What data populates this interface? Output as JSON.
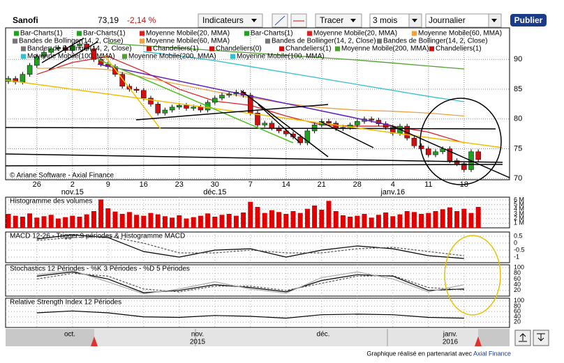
{
  "toolbar": {
    "name": "Sanofi",
    "price": "73,19",
    "change": "-2,14 %",
    "indicators": "Indicateurs",
    "draw": "Tracer",
    "period": "3 mois",
    "interval": "Journalier",
    "publish": "Publier"
  },
  "copyright": "© Ariane Software - Axial Finance",
  "navigator": {
    "labels": [
      "oct.",
      "nov.",
      "2015",
      "déc.",
      "janv.",
      "2016"
    ]
  },
  "footer": {
    "text": "Graphique réalisé en partenariat avec",
    "link": "Axial Finance"
  },
  "chart_data": [
    {
      "type": "candlestick",
      "up_color": "#22a022",
      "down_color": "#d01010",
      "categories": [
        null,
        null,
        null,
        null,
        "26",
        null,
        null,
        null,
        null,
        "2",
        null,
        null,
        null,
        null,
        "9",
        null,
        null,
        null,
        null,
        "16",
        null,
        null,
        null,
        null,
        "23",
        null,
        null,
        null,
        null,
        "30",
        null,
        null,
        null,
        null,
        "7",
        null,
        null,
        null,
        null,
        "14",
        null,
        null,
        null,
        null,
        "21",
        null,
        null,
        null,
        null,
        "28",
        null,
        null,
        null,
        null,
        "4",
        null,
        null,
        null,
        null,
        "11",
        null,
        null,
        null,
        null,
        "18",
        null,
        null
      ],
      "month_labels": [
        {
          "label": "nov.15",
          "category": "2"
        },
        {
          "label": "déc.15",
          "category": "30"
        },
        {
          "label": "janv.16",
          "category": "4"
        }
      ],
      "open": [
        86.3,
        86.8,
        86.2,
        87.5,
        89.0,
        90.5,
        91.2,
        91.8,
        92.0,
        91.5,
        92.3,
        92.6,
        91.8,
        90.0,
        89.2,
        88.8,
        87.5,
        85.5,
        85.0,
        84.8,
        83.5,
        82.5,
        81.0,
        81.5,
        82.0,
        82.3,
        81.8,
        82.0,
        81.5,
        82.8,
        83.5,
        84.0,
        84.2,
        84.5,
        84.0,
        81.0,
        79.0,
        79.3,
        78.5,
        78.0,
        77.5,
        77.0,
        76.0,
        78.0,
        79.0,
        79.6,
        79.3,
        78.4,
        78.6,
        79.0,
        79.6,
        80.0,
        79.8,
        79.2,
        78.6,
        77.6,
        78.8,
        76.8,
        75.5,
        75.0,
        74.0,
        74.5,
        75.0,
        73.0,
        72.5,
        71.5,
        74.5
      ],
      "high": [
        87.2,
        87.2,
        87.9,
        89.4,
        90.9,
        91.6,
        92.2,
        92.4,
        92.4,
        92.7,
        93.0,
        93.0,
        92.2,
        90.4,
        89.6,
        89.2,
        87.9,
        85.9,
        85.4,
        85.2,
        83.9,
        82.9,
        81.9,
        82.4,
        82.7,
        82.7,
        82.4,
        82.4,
        83.2,
        83.9,
        84.4,
        84.6,
        84.9,
        84.9,
        84.4,
        81.4,
        79.7,
        79.7,
        78.9,
        78.4,
        77.9,
        77.4,
        78.4,
        79.4,
        80.0,
        80.0,
        79.7,
        79.0,
        79.4,
        80.0,
        80.4,
        80.4,
        80.2,
        79.6,
        79.0,
        79.2,
        79.2,
        77.2,
        75.9,
        75.4,
        74.9,
        75.4,
        75.4,
        73.4,
        72.9,
        74.9,
        74.9
      ],
      "low": [
        85.9,
        85.8,
        85.8,
        87.1,
        88.6,
        90.1,
        90.8,
        91.4,
        91.1,
        91.1,
        91.9,
        91.4,
        89.6,
        88.8,
        88.4,
        87.1,
        85.1,
        84.6,
        84.4,
        83.1,
        82.1,
        80.6,
        80.6,
        81.1,
        81.6,
        81.4,
        81.4,
        81.1,
        81.1,
        82.4,
        83.1,
        83.6,
        83.8,
        83.6,
        80.6,
        78.6,
        78.6,
        78.1,
        77.6,
        77.1,
        76.6,
        75.6,
        75.6,
        77.6,
        78.6,
        78.9,
        78.0,
        78.0,
        78.2,
        78.6,
        79.2,
        79.4,
        78.8,
        78.2,
        77.2,
        77.2,
        76.4,
        75.1,
        74.6,
        73.6,
        73.6,
        74.1,
        72.6,
        72.1,
        71.1,
        71.1,
        72.8
      ],
      "close": [
        86.8,
        86.2,
        87.5,
        89.0,
        90.5,
        91.2,
        91.8,
        92.0,
        91.5,
        92.3,
        92.6,
        91.8,
        90.0,
        89.2,
        88.8,
        87.5,
        85.5,
        85.0,
        84.8,
        83.5,
        82.5,
        81.0,
        81.5,
        82.0,
        82.3,
        81.8,
        82.0,
        81.5,
        82.8,
        83.5,
        84.0,
        84.2,
        84.5,
        84.0,
        81.0,
        79.0,
        79.3,
        78.5,
        78.0,
        77.5,
        77.0,
        76.0,
        78.0,
        79.0,
        79.6,
        79.3,
        78.4,
        78.6,
        79.0,
        79.6,
        80.0,
        79.8,
        79.2,
        78.6,
        77.6,
        78.8,
        76.8,
        75.5,
        75.0,
        74.0,
        74.5,
        75.0,
        73.0,
        72.5,
        71.5,
        74.5,
        73.19
      ],
      "ylim": [
        69.8,
        95.3
      ],
      "yticks": [
        90,
        85,
        80,
        75,
        70
      ],
      "grid": true,
      "lines": {
        "categories": [
          "26",
          "2",
          "9",
          "16",
          "23",
          "30",
          "7",
          "14",
          "21",
          "28",
          "4",
          "11",
          "18"
        ],
        "series": [
          {
            "name": "Moyenne Mobile(20, MMA)",
            "color": "#e02020",
            "values": [
              87.5,
              89.5,
              90.5,
              88.0,
              85.0,
              83.0,
              82.3,
              80.5,
              79.0,
              78.8,
              78.8,
              77.8,
              76.0
            ]
          },
          {
            "name": "Moyenne Mobile(60, MMA)",
            "color": "#f0a040",
            "values": [
              88.5,
              88.6,
              88.3,
              87.0,
              85.8,
              84.6,
              83.6,
              82.6,
              81.9,
              81.5,
              81.3,
              81.0,
              80.5
            ]
          },
          {
            "name": "Moyenne Mobile(200, MMA)",
            "color": "#50a030",
            "values": [
              null,
              null,
              92.7,
              92.3,
              91.9,
              91.5,
              91.1,
              90.7,
              90.3,
              89.9,
              89.4,
              88.9,
              88.4
            ]
          },
          {
            "name": "Moyenne Mobile(100, MMA)",
            "color": "#30c0d0",
            "values": [
              null,
              null,
              null,
              91.3,
              90.6,
              89.8,
              88.8,
              87.8,
              86.8,
              85.8,
              84.8,
              83.8,
              82.9
            ]
          }
        ]
      },
      "legend": [
        [
          {
            "label": "Bar-Charts(1)",
            "color": "#22a022"
          },
          {
            "label": "Bar-Charts(1)",
            "color": "#22a022"
          },
          {
            "label": "Moyenne Mobile(20, MMA)",
            "color": "#e02020"
          },
          {
            "label": "Bar-Charts(1)",
            "color": "#22a022"
          },
          {
            "label": "Moyenne Mobile(20, MMA)",
            "color": "#e02020"
          },
          {
            "label": "Moyenne Mobile(60, MMA)",
            "color": "#f0a040"
          }
        ],
        [
          {
            "label": "Bandes de Bollinger(14, 2, Close)",
            "color": "#777777"
          },
          {
            "label": "Moyenne Mobile(60, MMA)",
            "color": "#f0a040"
          },
          {
            "label": "Bandes de Bollinger(14, 2, Close)",
            "color": "#777777"
          },
          {
            "label": "Bandes de Bollinger(14, 2, Close)",
            "color": "#777777"
          }
        ],
        [
          {
            "label": "Bandes de Bollinger(14, 2, Close)",
            "color": "#777777"
          },
          {
            "label": "Chandeliers(1)",
            "color": "#d01010"
          },
          {
            "label": "Chandeliers(0)",
            "color": "#d01010"
          },
          {
            "label": "Chandeliers(1)",
            "color": "#d01010"
          },
          {
            "label": "Moyenne Mobile(200, MMA)",
            "color": "#50a030"
          },
          {
            "label": "Chandeliers(1)",
            "color": "#d01010"
          }
        ],
        [
          {
            "label": "Moyenne Mobile(100, MMA)",
            "color": "#30c0d0"
          },
          {
            "label": "Moyenne Mobile(200, MMA)",
            "color": "#50a030"
          },
          {
            "label": "Moyenne Mobile(100, MMA)",
            "color": "#30c0d0"
          }
        ]
      ]
    },
    {
      "type": "bar",
      "title": "Histogramme des volumes",
      "color": "#e00000",
      "ylim": [
        0,
        6.6
      ],
      "yticks": [
        {
          "value": 6,
          "label": "6 M"
        },
        {
          "value": 5,
          "label": "5 M"
        },
        {
          "value": 4,
          "label": "4 M"
        },
        {
          "value": 3,
          "label": "3 M"
        },
        {
          "value": 2,
          "label": "2 M"
        },
        {
          "value": 1,
          "label": "1 M"
        }
      ],
      "values": [
        3.0,
        2.6,
        2.4,
        3.1,
        2.2,
        2.5,
        2.8,
        2.0,
        2.3,
        2.6,
        2.4,
        2.9,
        3.6,
        6.1,
        4.2,
        3.5,
        3.0,
        3.4,
        2.8,
        2.6,
        3.2,
        2.9,
        2.5,
        2.2,
        2.7,
        2.0,
        2.3,
        2.6,
        3.1,
        2.4,
        2.8,
        3.0,
        2.6,
        3.3,
        5.6,
        4.5,
        3.2,
        3.8,
        3.4,
        3.0,
        3.6,
        3.2,
        4.1,
        4.8,
        3.9,
        5.8,
        3.6,
        2.7,
        2.4,
        2.6,
        3.0,
        2.2,
        2.8,
        3.3,
        2.5,
        2.9,
        3.6,
        3.4,
        3.0,
        3.2,
        3.6,
        4.0,
        4.4,
        3.6,
        4.1,
        3.2,
        4.5
      ]
    },
    {
      "type": "line",
      "title": "MACD 12-26 - Trigger 9 périodes & Histogramme MACD",
      "ylim": [
        -1.4,
        0.8
      ],
      "yticks": [
        0.5,
        0,
        -0.5,
        -1
      ],
      "categories": [
        "26",
        "2",
        "9",
        "16",
        "23",
        "30",
        "7",
        "14",
        "21",
        "28",
        "4",
        "11",
        "18"
      ],
      "series": [
        {
          "color": "#000000",
          "values": [
            0.3,
            0.6,
            0.4,
            -0.6,
            -1.0,
            -0.5,
            -0.4,
            -1.0,
            -0.5,
            -0.2,
            -0.4,
            -0.9,
            -1.1
          ]
        },
        {
          "color": "#555555",
          "dash": true,
          "values": [
            0.2,
            0.4,
            0.5,
            0.0,
            -0.7,
            -0.7,
            -0.5,
            -0.7,
            -0.7,
            -0.4,
            -0.3,
            -0.6,
            -0.9
          ]
        }
      ]
    },
    {
      "type": "line",
      "title": "Stochastics 12 Périodes - %K 3 Périodes - %D 5 Périodes",
      "ylim": [
        0,
        110
      ],
      "yticks": [
        100,
        80,
        60,
        40,
        20
      ],
      "categories": [
        "26",
        "2",
        "9",
        "16",
        "23",
        "30",
        "7",
        "14",
        "21",
        "28",
        "4",
        "11",
        "18"
      ],
      "series": [
        {
          "color": "#000000",
          "values": [
            70,
            85,
            60,
            12,
            20,
            40,
            30,
            15,
            55,
            75,
            70,
            20,
            25
          ]
        },
        {
          "color": "#555555",
          "dash": true,
          "values": [
            60,
            80,
            70,
            25,
            15,
            35,
            35,
            20,
            45,
            70,
            72,
            30,
            22
          ]
        },
        {
          "color": "#aaaaaa",
          "values": [
            75,
            90,
            50,
            8,
            25,
            50,
            25,
            10,
            65,
            85,
            60,
            15,
            40
          ]
        }
      ]
    },
    {
      "type": "line",
      "title": "Relative Strength Index 12 Périodes",
      "ylim": [
        0,
        110
      ],
      "yticks": [
        100,
        80,
        60,
        40,
        20
      ],
      "categories": [
        "26",
        "2",
        "9",
        "16",
        "23",
        "30",
        "7",
        "14",
        "21",
        "28",
        "4",
        "11",
        "18"
      ],
      "series": [
        {
          "color": "#000000",
          "values": [
            55,
            62,
            55,
            40,
            38,
            45,
            42,
            35,
            48,
            50,
            48,
            38,
            35
          ]
        }
      ]
    }
  ]
}
